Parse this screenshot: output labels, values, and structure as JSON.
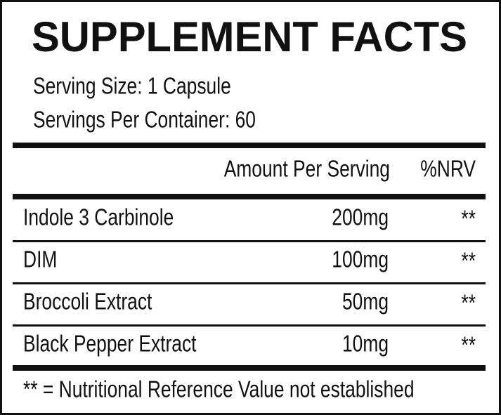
{
  "title": "SUPPLEMENT FACTS",
  "serving_size": "Serving Size: 1 Capsule",
  "servings_per_container": "Servings Per Container: 60",
  "table": {
    "header": [
      "Amount Per Serving",
      "%NRV"
    ],
    "rows": [
      [
        "Indole 3 Carbinole",
        "200mg",
        "**"
      ],
      [
        "DIM",
        "100mg",
        "**"
      ],
      [
        "Broccoli Extract",
        "50mg",
        "**"
      ],
      [
        "Black Pepper Extract",
        "10mg",
        "**"
      ]
    ]
  },
  "footnote": "** = Nutritional Reference Value not established"
}
